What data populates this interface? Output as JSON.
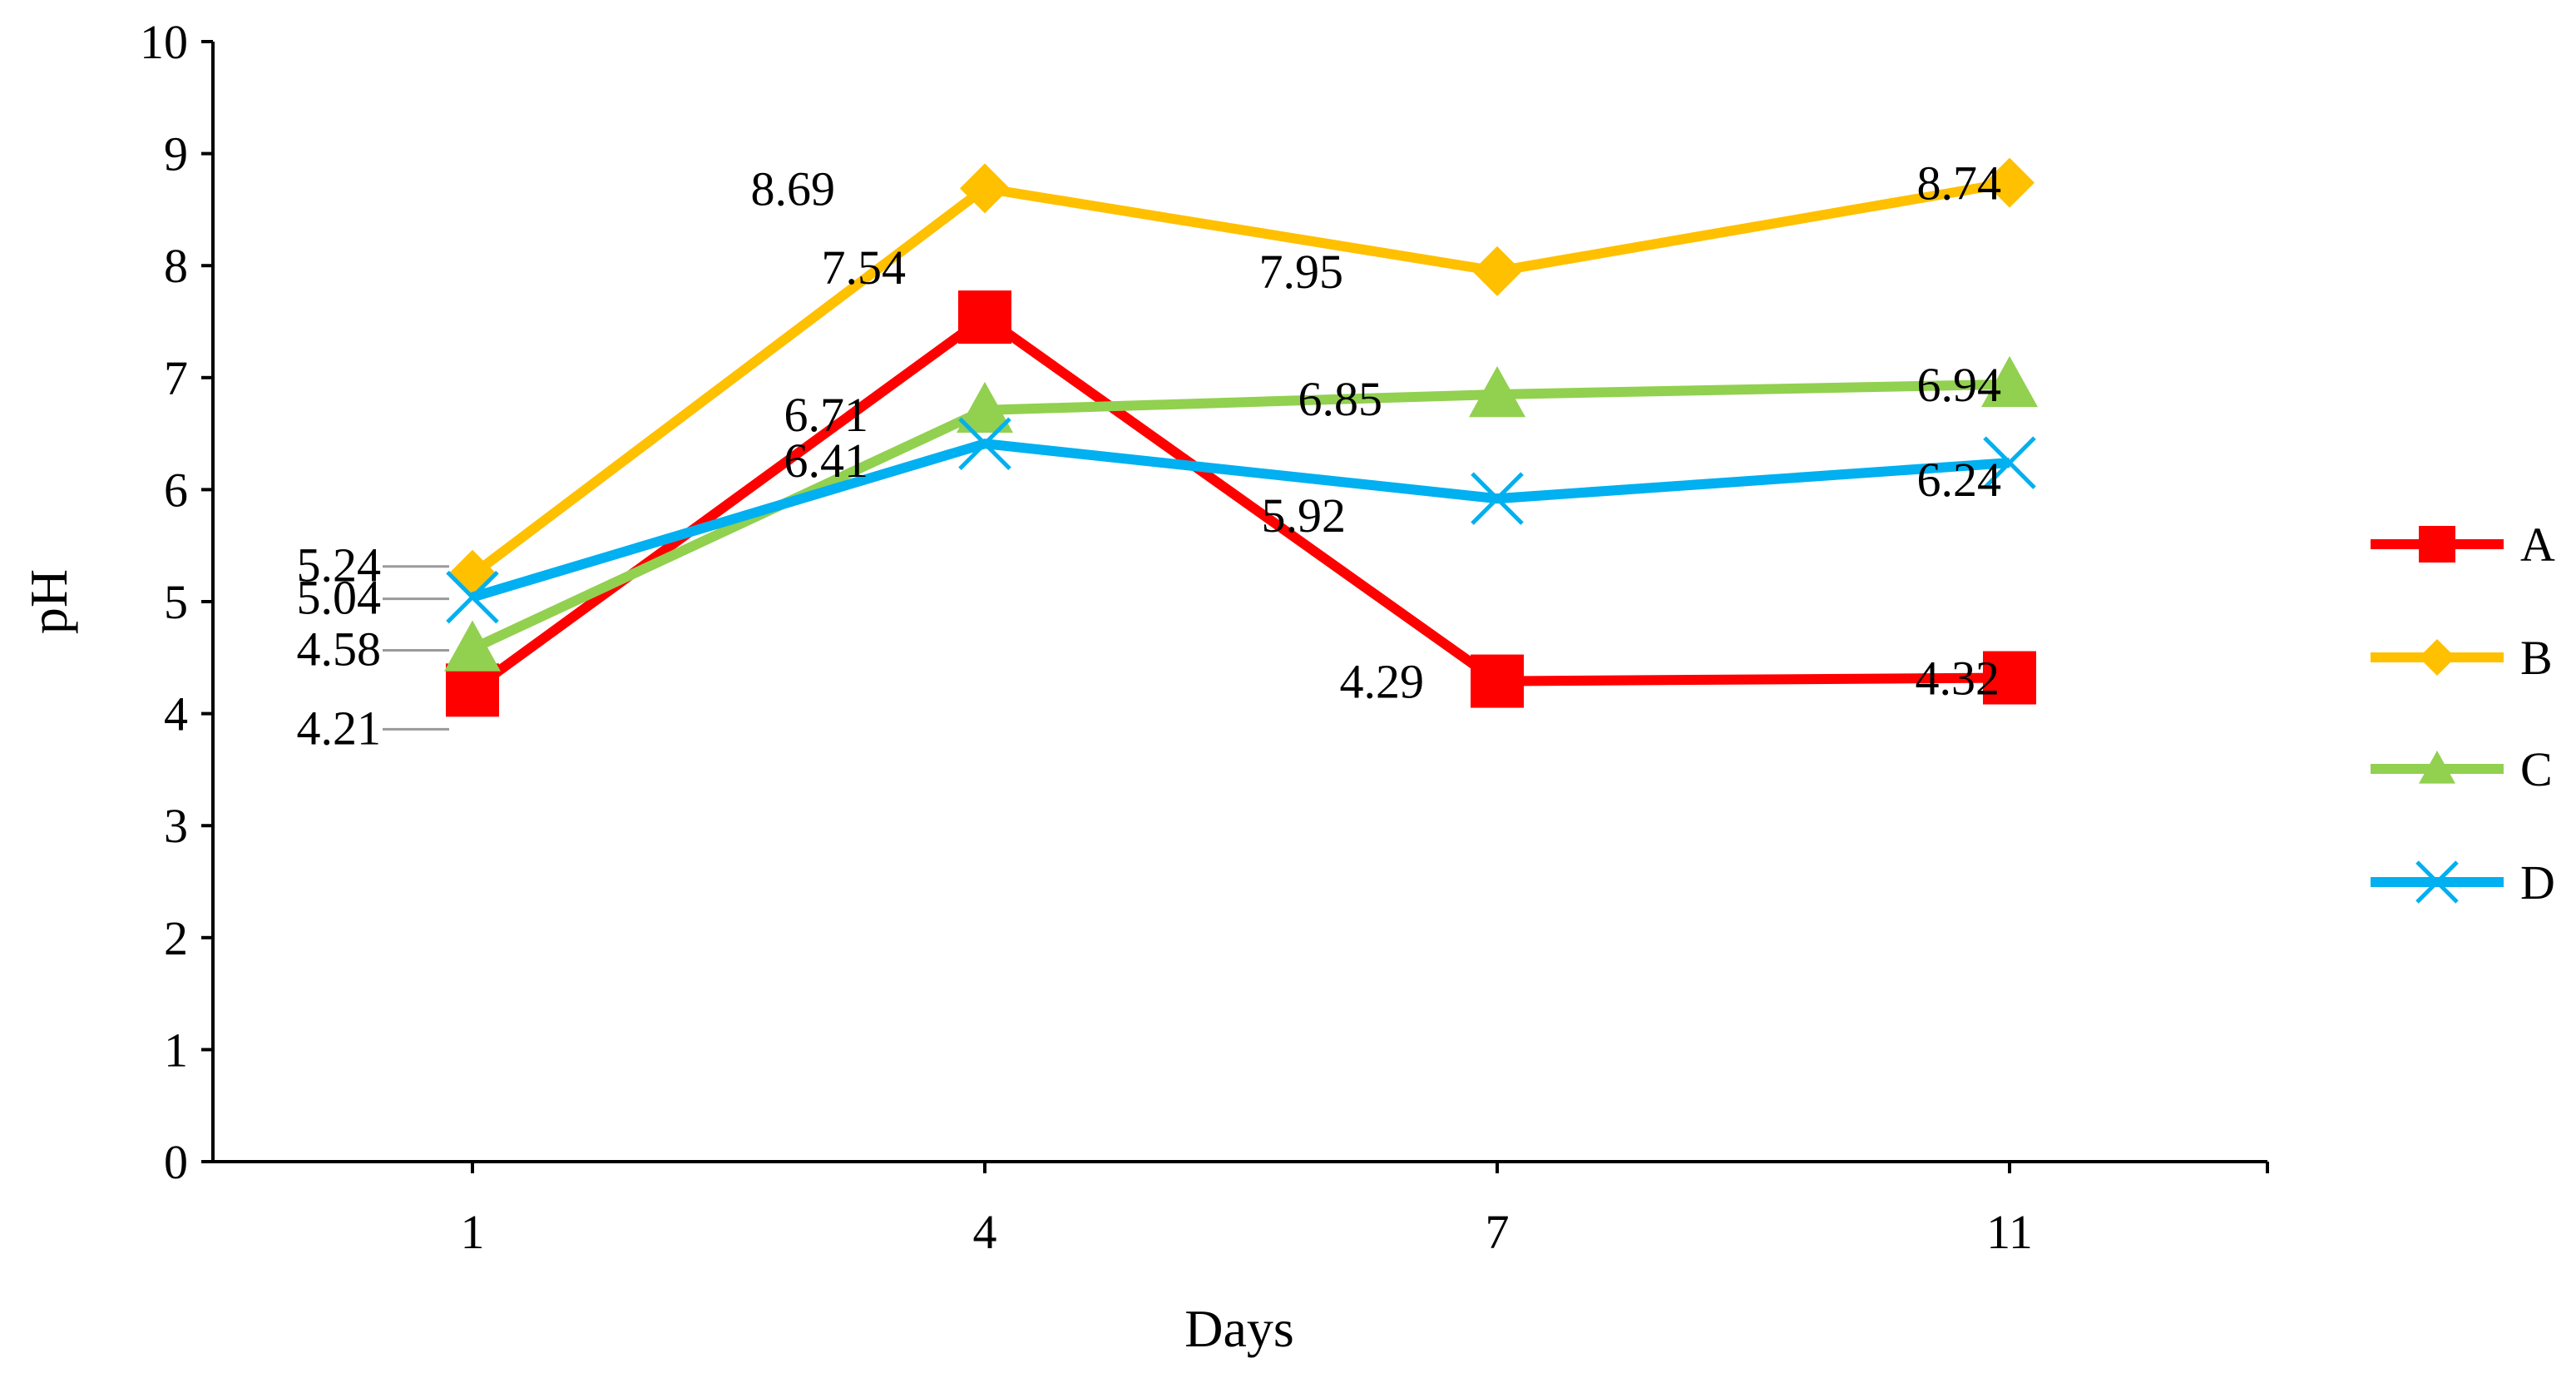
{
  "chart_data": {
    "type": "line",
    "title": "",
    "xlabel": "Days",
    "ylabel": "pH",
    "categories": [
      "1",
      "4",
      "7",
      "11"
    ],
    "ylim": [
      0,
      10
    ],
    "yticks": [
      "0",
      "1",
      "2",
      "3",
      "4",
      "5",
      "6",
      "7",
      "8",
      "9",
      "10"
    ],
    "grid": false,
    "legend_position": "right",
    "series": [
      {
        "name": "A",
        "color": "#FF0000",
        "marker": "square",
        "values": [
          4.21,
          7.54,
          4.29,
          4.32
        ],
        "labels": [
          "4.21",
          "7.54",
          "4.29",
          "4.32"
        ]
      },
      {
        "name": "B",
        "color": "#FFC000",
        "marker": "diamond",
        "values": [
          5.24,
          8.69,
          7.95,
          8.74
        ],
        "labels": [
          "5.24",
          "8.69",
          "7.95",
          "8.74"
        ]
      },
      {
        "name": "C",
        "color": "#92D050",
        "marker": "triangle",
        "values": [
          4.58,
          6.71,
          6.85,
          6.94
        ],
        "labels": [
          "4.58",
          "6.71",
          "6.85",
          "6.94"
        ]
      },
      {
        "name": "D",
        "color": "#00B0F0",
        "marker": "x",
        "values": [
          5.04,
          6.41,
          5.92,
          6.24
        ],
        "labels": [
          "5.04",
          "6.41",
          "5.92",
          "6.24"
        ]
      }
    ]
  }
}
